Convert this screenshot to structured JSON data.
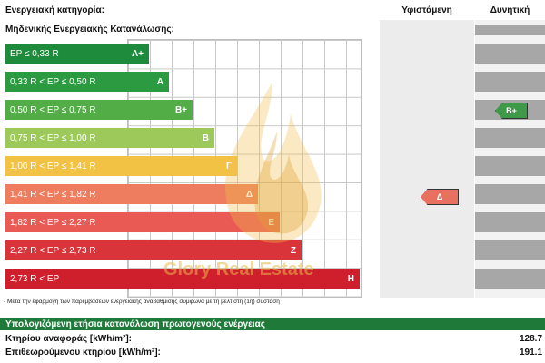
{
  "header": {
    "category_label": "Ενεργειακή κατηγορία:",
    "existing_label": "Υφιστάμενη",
    "potential_label": "Δυνητική",
    "zero_consumption_label": "Μηδενικής Ενεργειακής Κατανάλωσης:"
  },
  "classes": [
    {
      "range": "EP ≤ 0,33 R",
      "class": "A+",
      "color": "#1e8a3c"
    },
    {
      "range": "0,33 R < EP ≤ 0,50 R",
      "class": "A",
      "color": "#2b9a40"
    },
    {
      "range": "0,50 R < EP ≤ 0,75 R",
      "class": "B+",
      "color": "#53ad46"
    },
    {
      "range": "0,75 R < EP ≤ 1,00 R",
      "class": "B",
      "color": "#9cc95a"
    },
    {
      "range": "1,00 R < EP ≤ 1,41 R",
      "class": "Γ",
      "color": "#f2c245"
    },
    {
      "range": "1,41 R < EP ≤ 1,82 R",
      "class": "Δ",
      "color": "#ee7d5f"
    },
    {
      "range": "1,82 R < EP ≤ 2,27 R",
      "class": "Ε",
      "color": "#ea5a55"
    },
    {
      "range": "2,27 R < EP ≤ 2,73 R",
      "class": "Ζ",
      "color": "#d9343a"
    },
    {
      "range": "2,73 R < EP",
      "class": "Η",
      "color": "#d01f2c"
    }
  ],
  "existing_marker": {
    "class": "Δ",
    "color": "#e8705f"
  },
  "potential_marker": {
    "class": "B+",
    "color": "#3e9a48"
  },
  "note": "- Μετά την εφαρμογή των παρεμβάσεων ενεργειακής αναβάθμισης σύμφωνα με τη βέλτιστη (1η) σύσταση",
  "consumption": {
    "title": "Υπολογιζόμενη ετήσια κατανάλωση πρωτογενούς ενέργειας",
    "reference_label": "Κτηρίου αναφοράς [kWh/m²]:",
    "reference_value": "128.7",
    "inspected_label": "Επιθεωρούμενου κτηρίου [kWh/m²]:",
    "inspected_value": "191.1"
  },
  "watermark": {
    "text": "Glory Real Estate"
  }
}
